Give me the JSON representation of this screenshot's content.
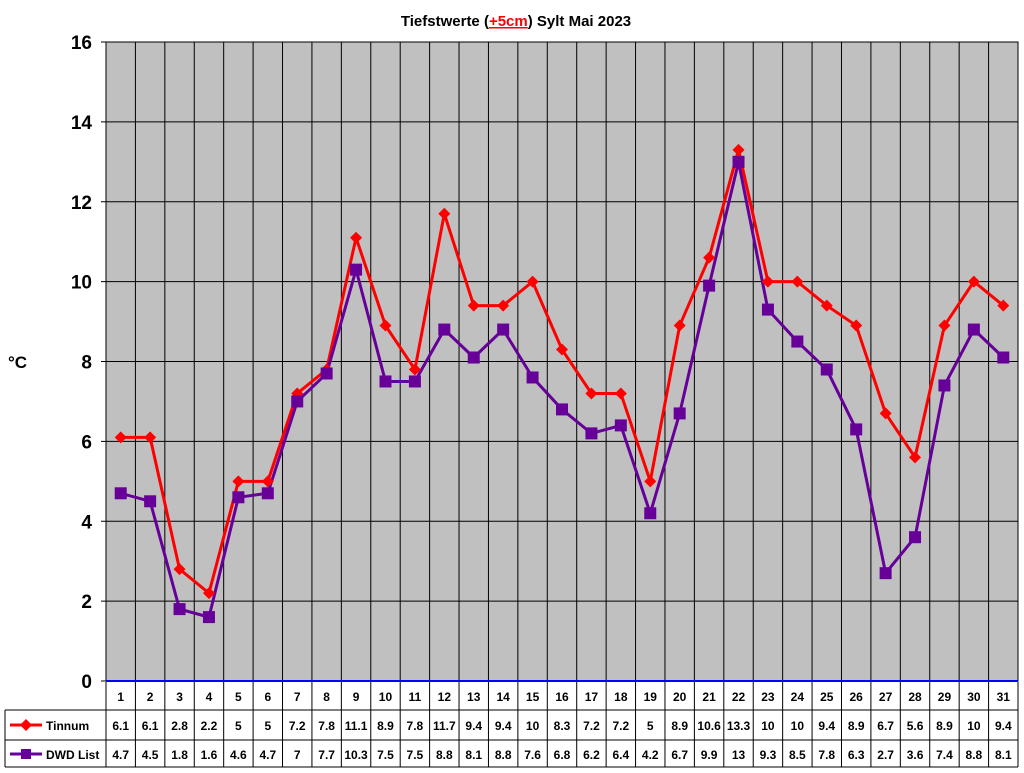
{
  "chart_data": {
    "type": "line",
    "title": {
      "prefix": "Tiefstwerte (",
      "highlight": "+5cm",
      "suffix": ") Sylt Mai 2023"
    },
    "ylabel": "°C",
    "xlabel": "",
    "ylim": [
      0,
      16
    ],
    "yticks": [
      0,
      2,
      4,
      6,
      8,
      10,
      12,
      14,
      16
    ],
    "grid": true,
    "legend": "data-table-left",
    "categories": [
      "1",
      "2",
      "3",
      "4",
      "5",
      "6",
      "7",
      "8",
      "9",
      "10",
      "11",
      "12",
      "13",
      "14",
      "15",
      "16",
      "17",
      "18",
      "19",
      "20",
      "21",
      "22",
      "23",
      "24",
      "25",
      "26",
      "27",
      "28",
      "29",
      "30",
      "31"
    ],
    "series": [
      {
        "name": "Tinnum",
        "color": "#ff0000",
        "marker": "diamond",
        "values": [
          6.1,
          6.1,
          2.8,
          2.2,
          5,
          5,
          7.2,
          7.8,
          11.1,
          8.9,
          7.8,
          11.7,
          9.4,
          9.4,
          10,
          8.3,
          7.2,
          7.2,
          5,
          8.9,
          10.6,
          13.3,
          10,
          10,
          9.4,
          8.9,
          6.7,
          5.6,
          8.9,
          10,
          9.4
        ]
      },
      {
        "name": "DWD List",
        "color": "#660099",
        "marker": "square",
        "values": [
          4.7,
          4.5,
          1.8,
          1.6,
          4.6,
          4.7,
          7,
          7.7,
          10.3,
          7.5,
          7.5,
          8.8,
          8.1,
          8.8,
          7.6,
          6.8,
          6.2,
          6.4,
          4.2,
          6.7,
          9.9,
          13,
          9.3,
          8.5,
          7.8,
          6.3,
          2.7,
          3.6,
          7.4,
          8.8,
          8.1
        ]
      }
    ],
    "colors": {
      "plot_bg": "#c0c0c0",
      "axis_zero": "#0000ff",
      "title_highlight": "#ff0000"
    }
  }
}
